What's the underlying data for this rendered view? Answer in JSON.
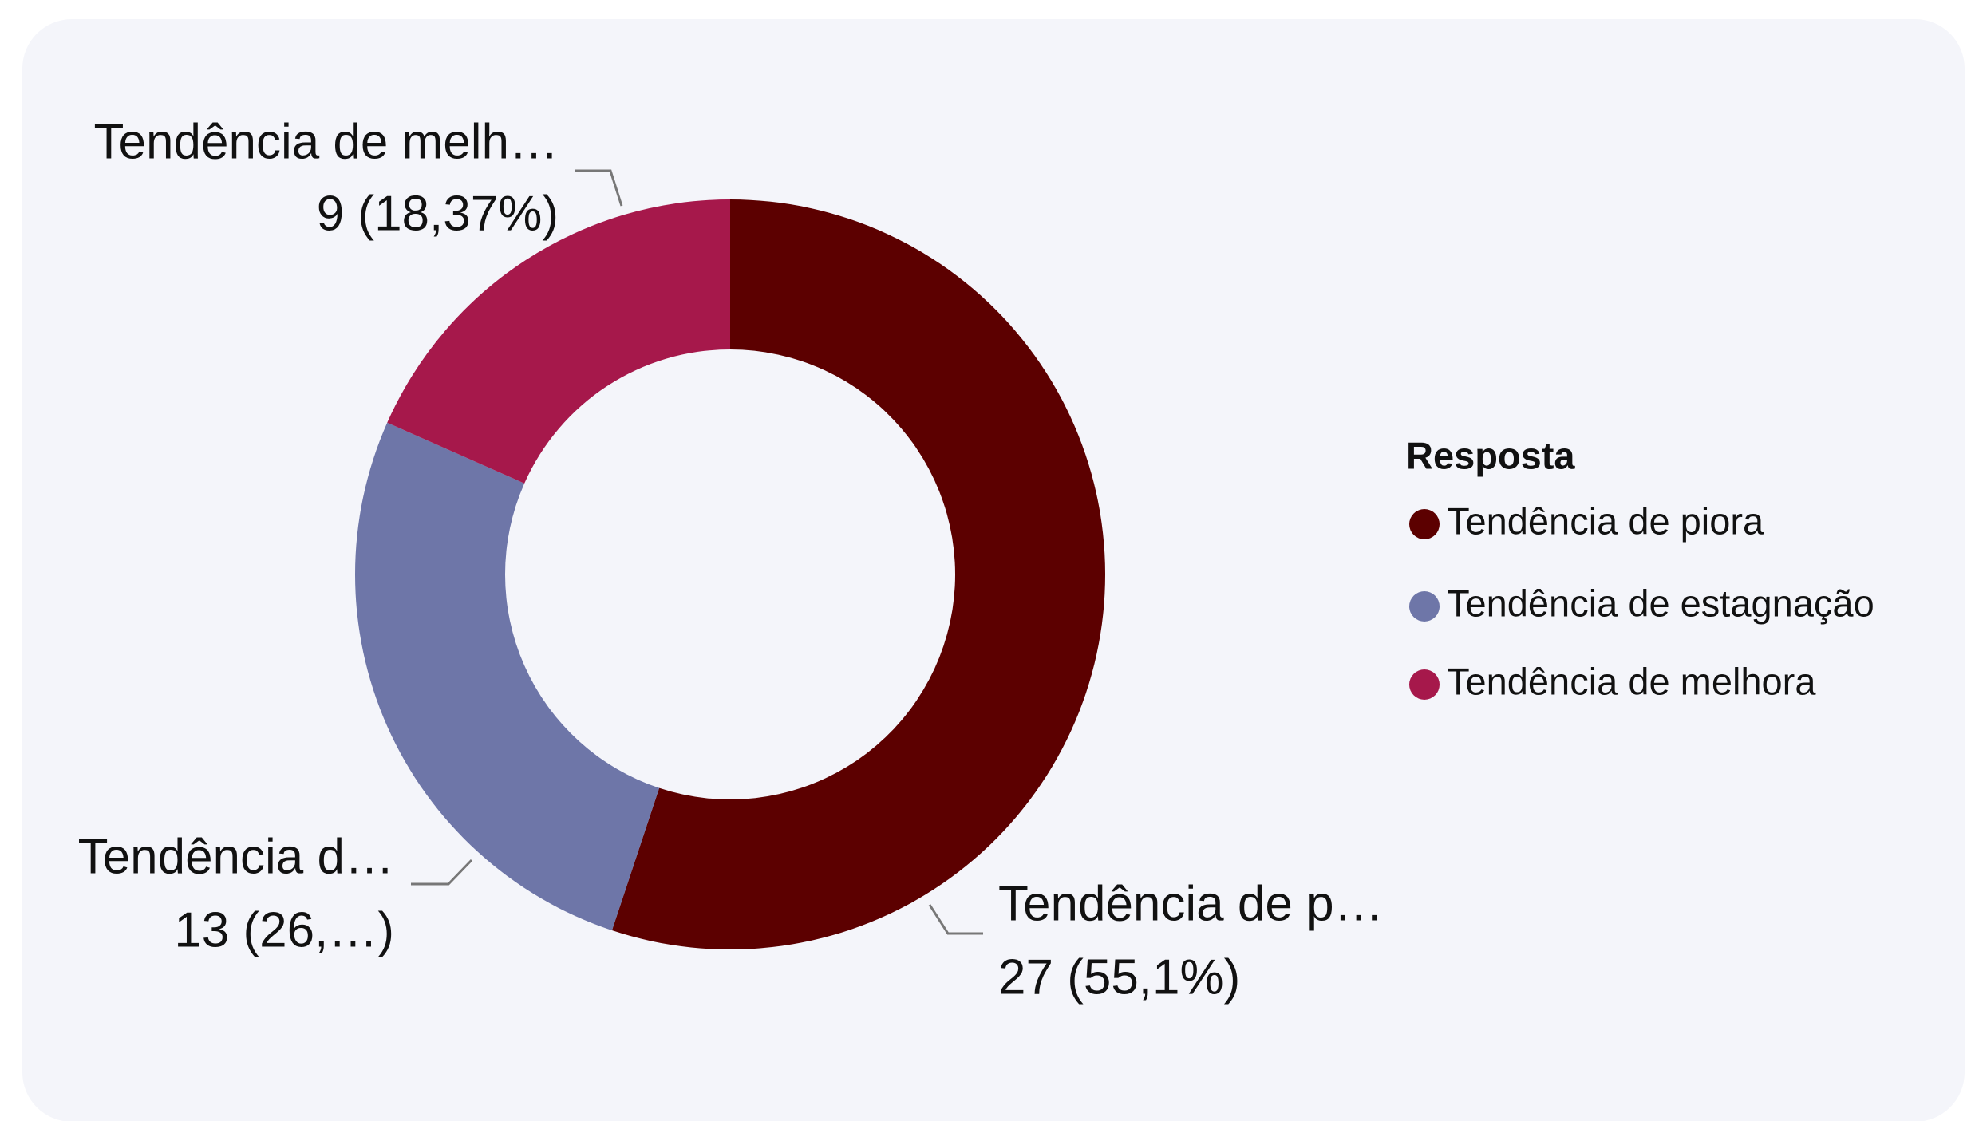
{
  "chart_data": {
    "type": "donut",
    "legend_title": "Resposta",
    "categories": [
      "Tendência de piora",
      "Tendência de estagnação",
      "Tendência de melhora"
    ],
    "values": [
      27,
      13,
      9
    ],
    "value_labels": [
      "27 (55,1%)",
      "13 (26,…)",
      "9 (18,37%)"
    ],
    "slice_labels": [
      "Tendência de p…",
      "Tendência d…",
      "Tendência de melh…"
    ],
    "colors": [
      "#5c0000",
      "#6e76a8",
      "#a6184b"
    ],
    "legend": "right"
  }
}
